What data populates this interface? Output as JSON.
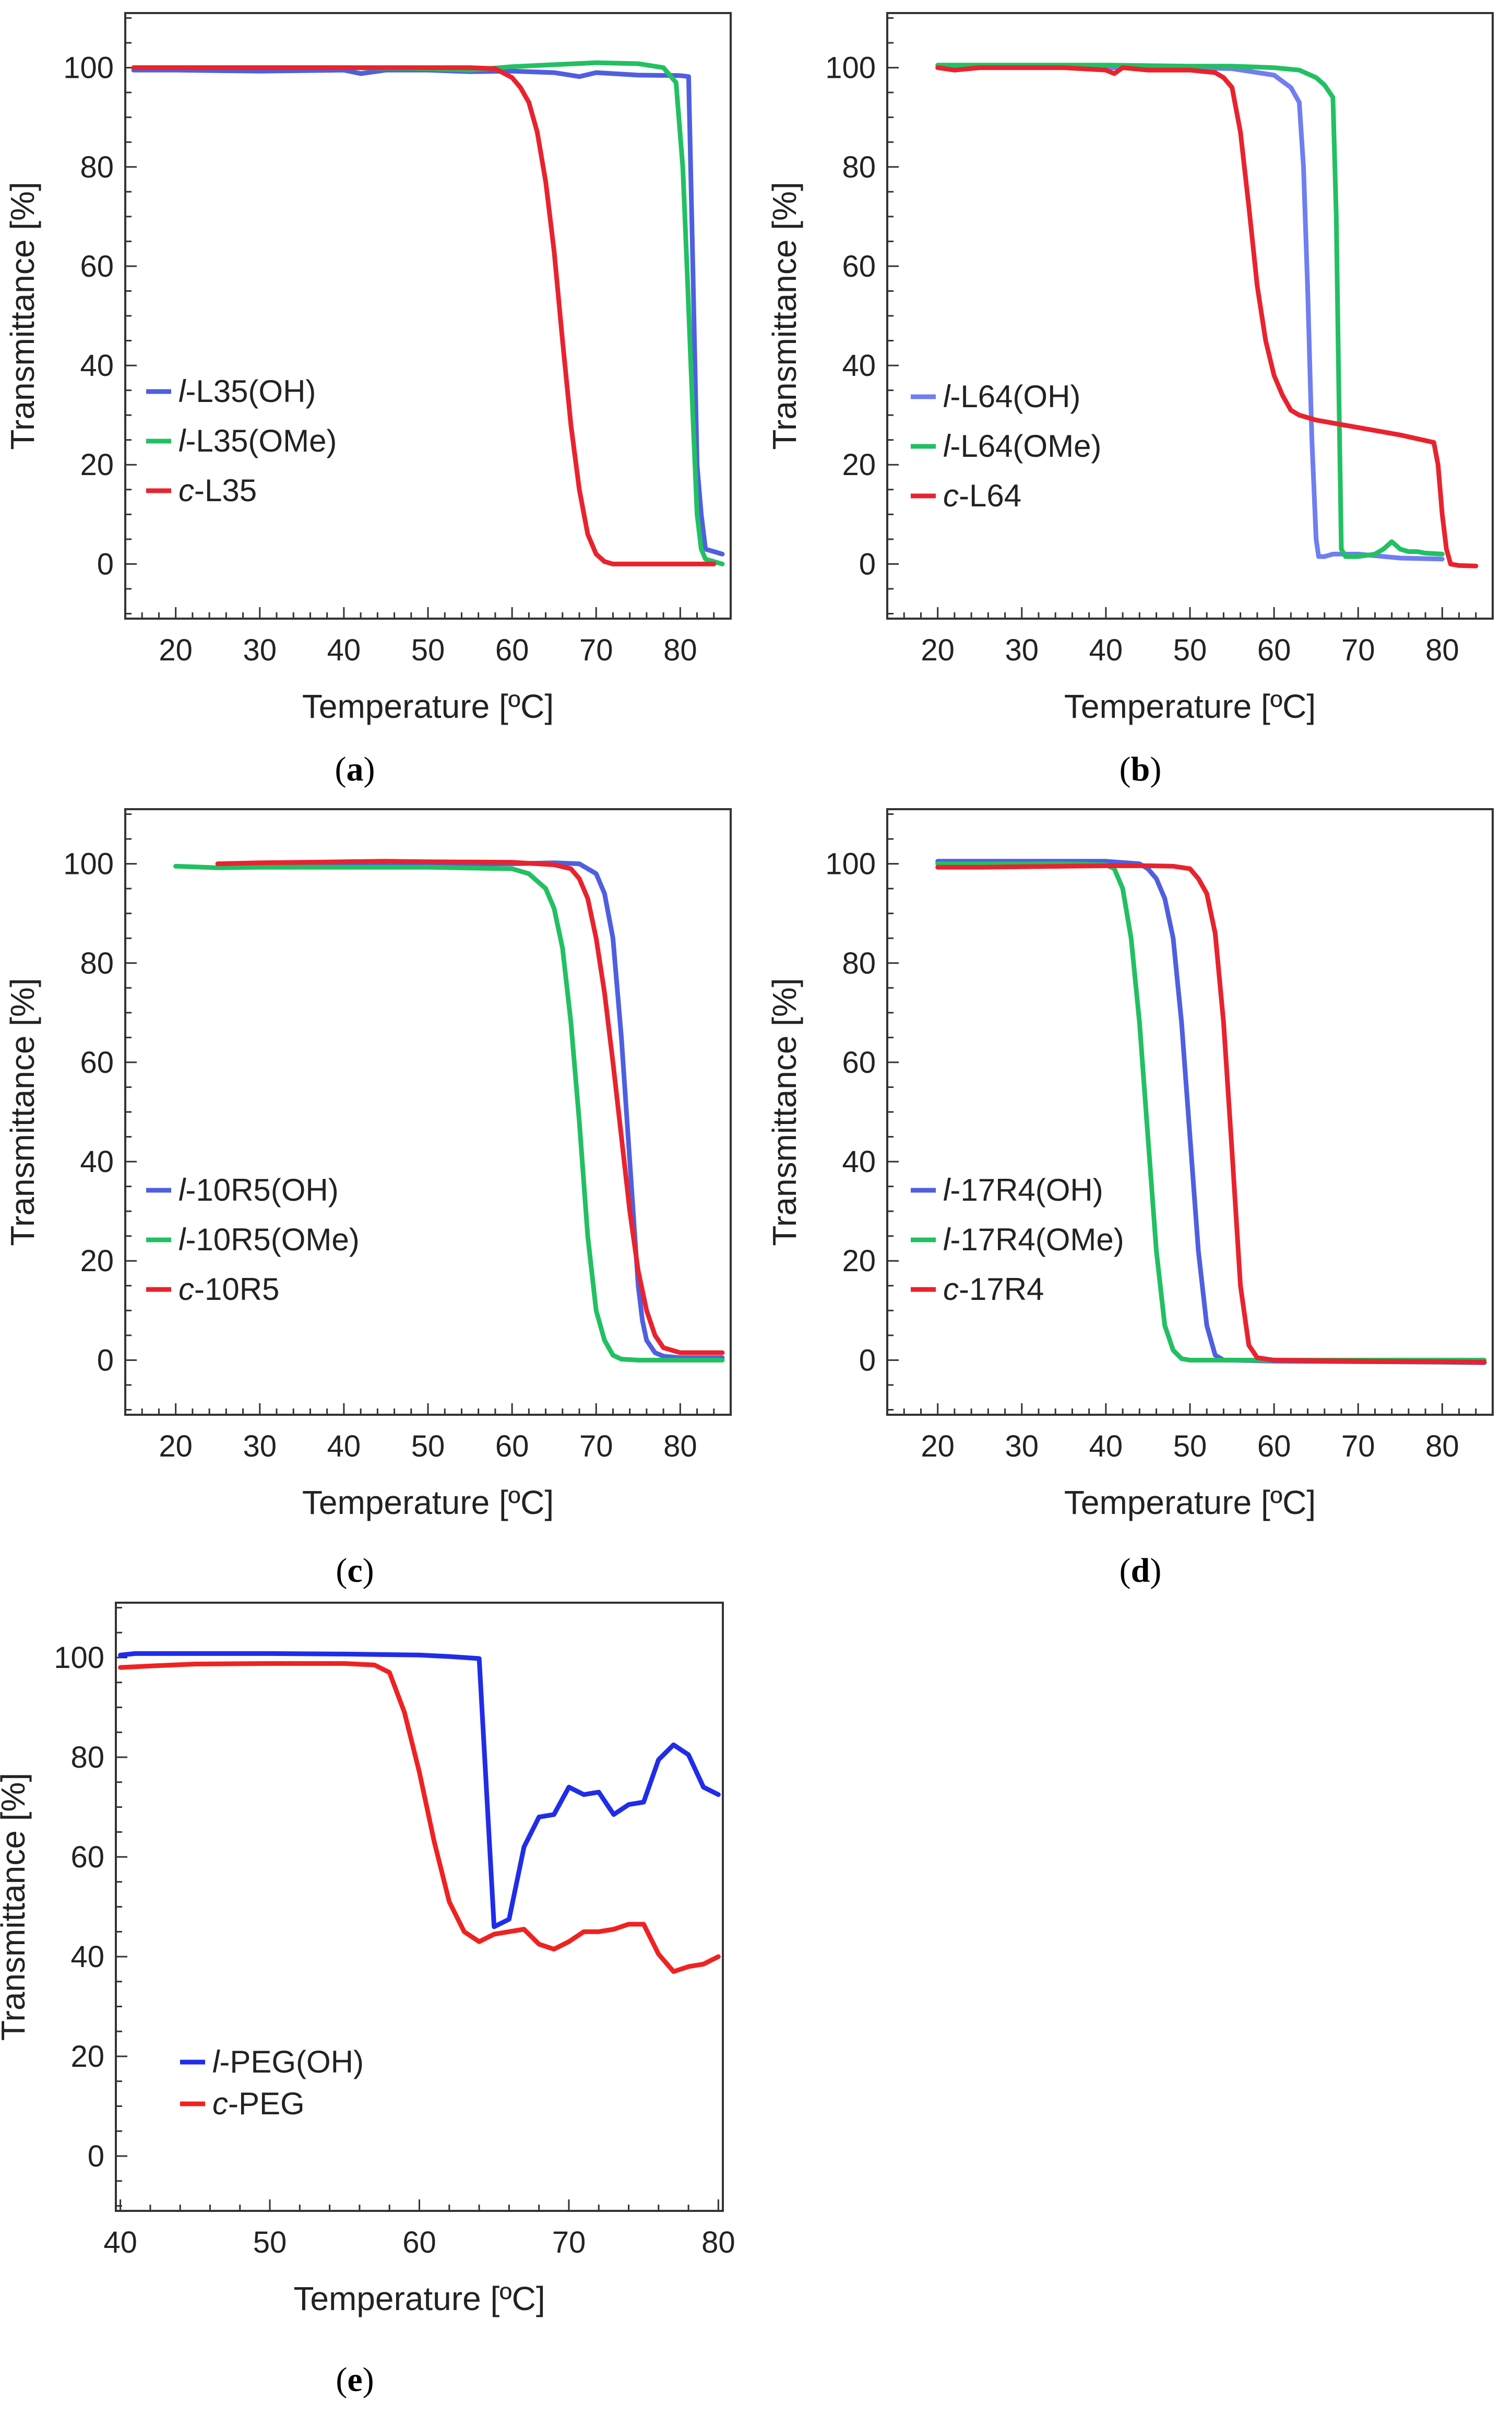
{
  "chart_data": [
    {
      "type": "line",
      "panel_label": "a",
      "xlabel": "Temperature [ºC]",
      "ylabel": "Transmittance [%]",
      "xlim": [
        14,
        86
      ],
      "ylim": [
        -11,
        111
      ],
      "xticks": [
        20,
        30,
        40,
        50,
        60,
        70,
        80
      ],
      "yticks": [
        0,
        20,
        40,
        60,
        80,
        100
      ],
      "legend_position": "middle-left",
      "series": [
        {
          "name": "l-L35(OH)",
          "prefix": "l",
          "suffix": "-L35(OH)",
          "color": "#4f5fe0",
          "x": [
            15,
            20,
            30,
            40,
            42,
            45,
            50,
            55,
            60,
            65,
            68,
            70,
            75,
            80,
            81,
            81.5,
            82,
            82.5,
            83,
            84,
            85
          ],
          "y": [
            99.5,
            99.5,
            99.3,
            99.5,
            98.8,
            99.5,
            99.5,
            99.2,
            99.3,
            99,
            98.2,
            99,
            98.5,
            98.4,
            98.2,
            60,
            20,
            10,
            3,
            2.5,
            2
          ]
        },
        {
          "name": "l-L35(OMe)",
          "prefix": "l",
          "suffix": "-L35(OMe)",
          "color": "#22c063",
          "x": [
            15,
            20,
            30,
            40,
            50,
            55,
            60,
            65,
            70,
            75,
            78,
            79.5,
            80.3,
            80.8,
            81.5,
            82,
            82.5,
            83,
            84,
            85
          ],
          "y": [
            100,
            100,
            100,
            100,
            99.8,
            99.5,
            100.2,
            100.6,
            101,
            100.8,
            100,
            97,
            80,
            60,
            30,
            10,
            3,
            1,
            0.5,
            0
          ]
        },
        {
          "name": "c-L35",
          "prefix": "c",
          "suffix": "-L35",
          "color": "#e8232e",
          "x": [
            15,
            20,
            30,
            40,
            50,
            55,
            58,
            60,
            61,
            62,
            63,
            64,
            65,
            66,
            67,
            68,
            69,
            70,
            71,
            72,
            75,
            80,
            84
          ],
          "y": [
            100,
            100,
            100,
            100,
            100,
            100,
            99.8,
            98,
            96,
            93,
            87,
            77,
            63,
            45,
            28,
            15,
            6,
            2,
            0.5,
            0,
            0,
            0,
            0
          ]
        }
      ]
    },
    {
      "type": "line",
      "panel_label": "b",
      "xlabel": "Temperature [ºC]",
      "ylabel": "Transmittance [%]",
      "xlim": [
        14,
        86
      ],
      "ylim": [
        -11,
        111
      ],
      "xticks": [
        20,
        30,
        40,
        50,
        60,
        70,
        80
      ],
      "yticks": [
        0,
        20,
        40,
        60,
        80,
        100
      ],
      "legend_position": "middle-left",
      "series": [
        {
          "name": "l-L64(OH)",
          "prefix": "l",
          "suffix": "-L64(OH)",
          "color": "#6f7ef0",
          "x": [
            20,
            30,
            40,
            50,
            55,
            60,
            62,
            63,
            63.5,
            64,
            64.5,
            65,
            65.3,
            66,
            67,
            70,
            75,
            80
          ],
          "y": [
            100,
            100,
            100,
            100,
            99.8,
            98.5,
            96,
            93,
            80,
            55,
            25,
            5,
            1.5,
            1.5,
            2,
            2,
            1.2,
            1
          ]
        },
        {
          "name": "l-L64(OMe)",
          "prefix": "l",
          "suffix": "-L64(OMe)",
          "color": "#22c063",
          "x": [
            20,
            30,
            40,
            50,
            55,
            60,
            63,
            65,
            66,
            67,
            67.4,
            67.7,
            68,
            68.5,
            70,
            72,
            73,
            74,
            75,
            76,
            77,
            78,
            80
          ],
          "y": [
            100.5,
            100.5,
            100.5,
            100.3,
            100.3,
            100,
            99.5,
            98,
            96.5,
            94,
            70,
            35,
            3,
            1.5,
            1.5,
            2,
            3,
            4.5,
            3,
            2.5,
            2.5,
            2.2,
            2
          ]
        },
        {
          "name": "c-L64",
          "prefix": "c",
          "suffix": "-L64",
          "color": "#e8232e",
          "x": [
            20,
            22,
            25,
            30,
            35,
            40,
            41,
            42,
            45,
            50,
            53,
            54,
            55,
            56,
            57,
            58,
            59,
            60,
            61,
            62,
            63,
            65,
            70,
            75,
            79,
            79.5,
            80,
            80.5,
            81,
            82,
            84
          ],
          "y": [
            100,
            99.5,
            100,
            100,
            100,
            99.5,
            98.8,
            100,
            99.5,
            99.5,
            99,
            98,
            96,
            87,
            72,
            56,
            45,
            38,
            34,
            31,
            30,
            29,
            27.5,
            26,
            24.5,
            20,
            10,
            3,
            0,
            -0.3,
            -0.4
          ]
        }
      ]
    },
    {
      "type": "line",
      "panel_label": "c",
      "xlabel": "Temperature [ºC]",
      "ylabel": "Transmittance [%]",
      "xlim": [
        14,
        86
      ],
      "ylim": [
        -11,
        111
      ],
      "xticks": [
        20,
        30,
        40,
        50,
        60,
        70,
        80
      ],
      "yticks": [
        0,
        20,
        40,
        60,
        80,
        100
      ],
      "legend_position": "middle-left",
      "series": [
        {
          "name": "l-10R5(OH)",
          "prefix": "l",
          "suffix": "-10R5(OH)",
          "color": "#4f5fe0",
          "x": [
            25,
            30,
            40,
            50,
            60,
            65,
            68,
            70,
            71,
            72,
            73,
            74,
            75,
            75.5,
            76,
            77,
            78,
            80,
            85
          ],
          "y": [
            100,
            100,
            100,
            100,
            100,
            100.2,
            100,
            98,
            94,
            85,
            65,
            40,
            15,
            8,
            4,
            1.5,
            0.8,
            0.5,
            0.5
          ]
        },
        {
          "name": "l-10R5(OMe)",
          "prefix": "l",
          "suffix": "-10R5(OMe)",
          "color": "#22c063",
          "x": [
            20,
            25,
            30,
            40,
            50,
            60,
            62,
            64,
            65,
            66,
            67,
            68,
            69,
            70,
            71,
            72,
            73,
            75,
            80,
            85
          ],
          "y": [
            99.5,
            99.2,
            99.3,
            99.3,
            99.3,
            99,
            98,
            95,
            91,
            83,
            68,
            48,
            25,
            10,
            4,
            1,
            0.2,
            0,
            0,
            0
          ]
        },
        {
          "name": "c-10R5",
          "prefix": "c",
          "suffix": "-10R5",
          "color": "#e8232e",
          "x": [
            25,
            30,
            40,
            45,
            50,
            60,
            65,
            67,
            68,
            69,
            70,
            71,
            72,
            73,
            74,
            75,
            76,
            77,
            78,
            80,
            82,
            85
          ],
          "y": [
            100,
            100.2,
            100.4,
            100.5,
            100.4,
            100.3,
            99.8,
            99,
            97,
            93,
            85,
            74,
            60,
            45,
            30,
            18,
            10,
            5,
            2.5,
            1.5,
            1.5,
            1.5
          ]
        }
      ]
    },
    {
      "type": "line",
      "panel_label": "d",
      "xlabel": "Temperature [ºC]",
      "ylabel": "Transmittance [%]",
      "xlim": [
        14,
        86
      ],
      "ylim": [
        -11,
        111
      ],
      "xticks": [
        20,
        30,
        40,
        50,
        60,
        70,
        80
      ],
      "yticks": [
        0,
        20,
        40,
        60,
        80,
        100
      ],
      "legend_position": "middle-left",
      "series": [
        {
          "name": "l-17R4(OH)",
          "prefix": "l",
          "suffix": "-17R4(OH)",
          "color": "#4f5fe0",
          "x": [
            20,
            25,
            30,
            35,
            40,
            44,
            45,
            46,
            47,
            48,
            49,
            50,
            51,
            52,
            53,
            54,
            55,
            60,
            70,
            80,
            85
          ],
          "y": [
            100.5,
            100.5,
            100.5,
            100.5,
            100.5,
            100,
            99,
            97,
            93,
            85,
            68,
            45,
            22,
            7,
            1,
            0,
            0,
            -0.2,
            -0.3,
            -0.4,
            -0.5
          ]
        },
        {
          "name": "l-17R4(OMe)",
          "prefix": "l",
          "suffix": "-17R4(OMe)",
          "color": "#22c063",
          "x": [
            20,
            25,
            30,
            35,
            40,
            41,
            42,
            43,
            44,
            45,
            46,
            47,
            48,
            49,
            50,
            55,
            60,
            70,
            80,
            85
          ],
          "y": [
            100,
            100,
            100,
            100,
            99.8,
            99,
            95,
            85,
            68,
            45,
            22,
            7,
            2,
            0.3,
            0,
            0,
            0,
            0,
            0,
            0
          ]
        },
        {
          "name": "c-17R4",
          "prefix": "c",
          "suffix": "-17R4",
          "color": "#e8232e",
          "x": [
            20,
            25,
            30,
            35,
            40,
            45,
            48,
            50,
            51,
            52,
            53,
            54,
            55,
            56,
            57,
            58,
            60,
            70,
            80,
            85
          ],
          "y": [
            99.3,
            99.3,
            99.4,
            99.5,
            99.6,
            99.6,
            99.5,
            99,
            97,
            94,
            86,
            68,
            42,
            15,
            3,
            0.5,
            0,
            -0.2,
            -0.3,
            -0.4
          ]
        }
      ]
    },
    {
      "type": "line",
      "panel_label": "e",
      "xlabel": "Temperature [ºC]",
      "ylabel": "Transmittance [%]",
      "xlim": [
        39.7,
        80.3
      ],
      "ylim": [
        -11,
        111
      ],
      "xticks": [
        40,
        50,
        60,
        70,
        80
      ],
      "yticks": [
        0,
        20,
        40,
        60,
        80,
        100
      ],
      "legend_position": "lower-left",
      "series": [
        {
          "name": "l-PEG(OH)",
          "prefix": "l",
          "suffix": "-PEG(OH)",
          "color": "#1f2de8",
          "x": [
            40,
            41,
            45,
            50,
            55,
            60,
            62,
            63,
            64,
            65,
            66,
            67,
            68,
            69,
            70,
            71,
            72,
            73,
            74,
            75,
            76,
            77,
            78,
            79,
            80
          ],
          "y": [
            100.5,
            100.8,
            100.8,
            100.8,
            100.7,
            100.5,
            100.2,
            100,
            99.8,
            46,
            47.5,
            62,
            68,
            68.5,
            74,
            72.5,
            73,
            68.5,
            70.5,
            71,
            79.5,
            82.5,
            80.5,
            74,
            72.5
          ]
        },
        {
          "name": "c-PEG",
          "prefix": "c",
          "suffix": "-PEG",
          "color": "#ef2222",
          "x": [
            40,
            42,
            45,
            50,
            55,
            57,
            58,
            59,
            60,
            61,
            62,
            63,
            64,
            65,
            66,
            67,
            68,
            69,
            70,
            71,
            72,
            73,
            74,
            75,
            76,
            77,
            78,
            79,
            80
          ],
          "y": [
            98,
            98.3,
            98.7,
            98.8,
            98.8,
            98.5,
            97,
            89,
            77,
            63,
            51,
            45,
            43,
            44.5,
            45,
            45.5,
            42.5,
            41.5,
            43,
            45,
            45,
            45.5,
            46.5,
            46.5,
            40.5,
            37,
            38,
            38.5,
            40
          ]
        }
      ]
    }
  ]
}
